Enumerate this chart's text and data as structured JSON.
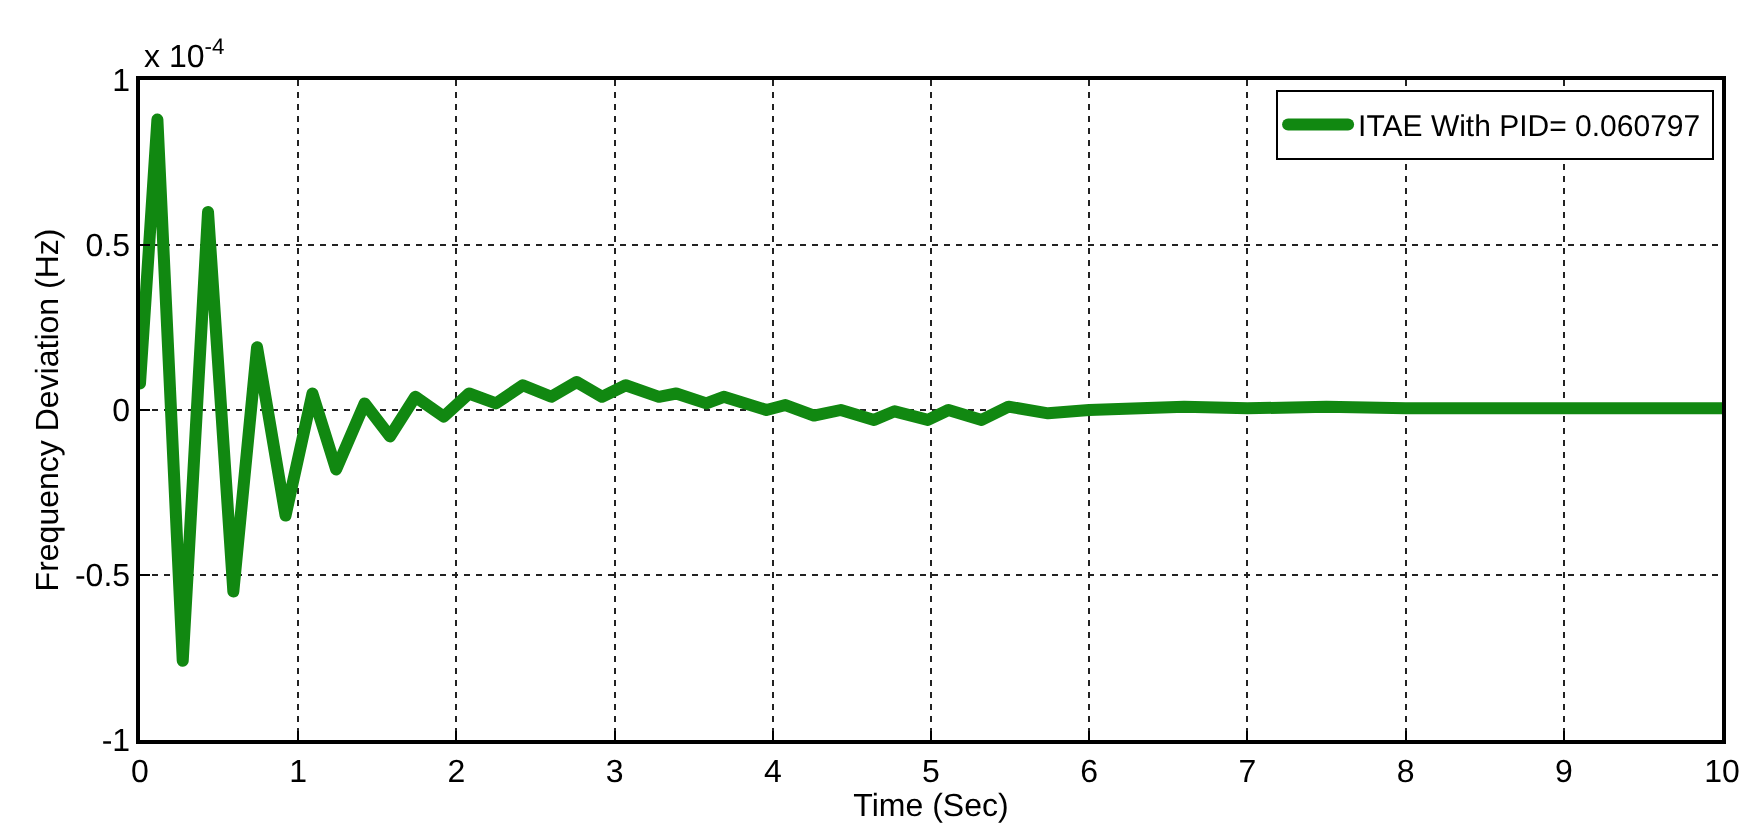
{
  "chart_data": {
    "type": "line",
    "xlabel": "Time (Sec)",
    "ylabel": "Frequency Deviation (Hz)",
    "annotations": [
      "x 10$^{-4}$"
    ],
    "xlim": [
      0,
      10
    ],
    "xticks": [
      0,
      1,
      2,
      3,
      4,
      5,
      6,
      7,
      8,
      9,
      10
    ],
    "ylim": [
      -1,
      1
    ],
    "yticks": [
      -1,
      -0.5,
      0,
      0.5,
      1
    ],
    "grid": true,
    "legend": "top right",
    "line_style": "solid",
    "series": [
      {
        "name": "ITAE With PID= 0.060797",
        "color": "#118811",
        "x": [
          0,
          0.11,
          0.27,
          0.43,
          0.59,
          0.74,
          0.92,
          1.09,
          1.24,
          1.42,
          1.58,
          1.74,
          1.92,
          2.08,
          2.25,
          2.42,
          2.6,
          2.76,
          2.92,
          3.07,
          3.28,
          3.39,
          3.58,
          3.69,
          3.96,
          4.08,
          4.26,
          4.43,
          4.64,
          4.77,
          4.98,
          5.11,
          5.32,
          5.49,
          5.74,
          6.0,
          6.6,
          7.0,
          7.5,
          8.0,
          9.0,
          10.0
        ],
        "values": [
          0.08,
          0.88,
          -0.76,
          0.6,
          -0.55,
          0.19,
          -0.32,
          0.05,
          -0.18,
          0.02,
          -0.08,
          0.04,
          -0.02,
          0.05,
          0.02,
          0.075,
          0.04,
          0.085,
          0.04,
          0.075,
          0.04,
          0.05,
          0.02,
          0.04,
          0,
          0.015,
          -0.017,
          0,
          -0.03,
          -0.004,
          -0.03,
          0,
          -0.03,
          0.01,
          -0.01,
          0,
          0.01,
          0.005,
          0.01,
          0.005,
          0.005,
          0.005
        ]
      }
    ]
  }
}
